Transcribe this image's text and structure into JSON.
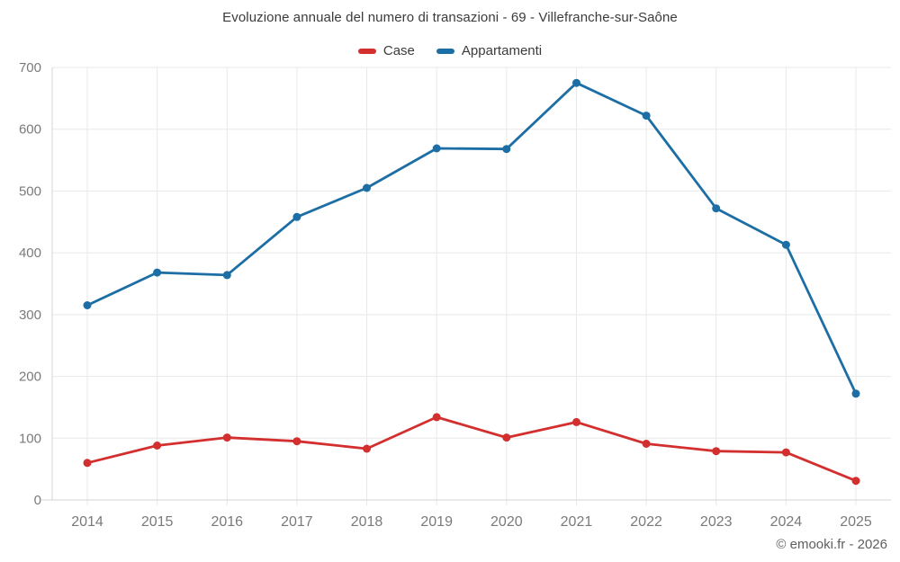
{
  "chart_data": {
    "type": "line",
    "title": "Evoluzione annuale del numero di transazioni - 69 - Villefranche-sur-Saône",
    "x": [
      2014,
      2015,
      2016,
      2017,
      2018,
      2019,
      2020,
      2021,
      2022,
      2023,
      2024,
      2025
    ],
    "series": [
      {
        "name": "Case",
        "color": "#d32f2f",
        "values": [
          60,
          88,
          101,
          95,
          83,
          134,
          101,
          126,
          91,
          79,
          77,
          31
        ]
      },
      {
        "name": "Appartamenti",
        "color": "#1c6ea4",
        "values": [
          315,
          368,
          364,
          458,
          505,
          569,
          568,
          675,
          622,
          472,
          413,
          172
        ]
      }
    ],
    "xlabel": "",
    "ylabel": "",
    "ylim": [
      0,
      700
    ],
    "yticks": [
      0,
      100,
      200,
      300,
      400,
      500,
      600,
      700
    ],
    "grid": true,
    "legend_position": "top",
    "marker": "circle"
  },
  "footer": {
    "copyright": "© emooki.fr - 2026"
  },
  "style_colors": {
    "grid": "#e8e8e8",
    "axis": "#d4d4d4",
    "tick_text": "#7a7a7a",
    "title_text": "#3b3b3b"
  }
}
